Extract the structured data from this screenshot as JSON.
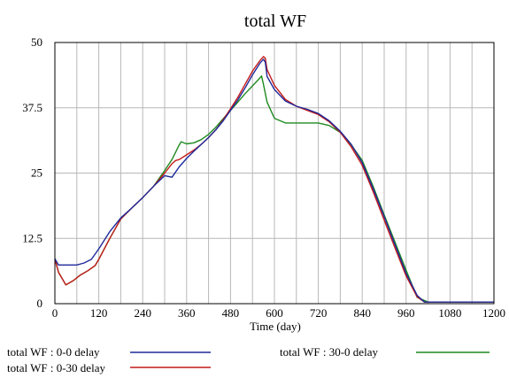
{
  "chart_data": {
    "type": "line",
    "title": "total WF",
    "xlabel": "Time (day)",
    "ylabel": "",
    "xlim": [
      0,
      1200
    ],
    "ylim": [
      0,
      50
    ],
    "xticks": [
      0,
      120,
      240,
      360,
      480,
      600,
      720,
      840,
      960,
      1080,
      1200
    ],
    "yticks": [
      0,
      12.5,
      25,
      37.5,
      50
    ],
    "xtick_labels": [
      "0",
      "120",
      "240",
      "360",
      "480",
      "600",
      "720",
      "840",
      "960",
      "1080",
      "1200"
    ],
    "ytick_labels": [
      "0",
      "12.5",
      "25",
      "37.5",
      "50"
    ],
    "grid": true,
    "legend_position": "bottom",
    "series": [
      {
        "name": "total WF : 0-0 delay",
        "color": "#1f2a9a",
        "x": [
          0,
          10,
          20,
          40,
          60,
          80,
          100,
          120,
          150,
          180,
          210,
          240,
          270,
          300,
          320,
          340,
          360,
          380,
          400,
          420,
          440,
          460,
          480,
          500,
          520,
          540,
          560,
          570,
          575,
          580,
          600,
          630,
          660,
          690,
          720,
          750,
          780,
          810,
          840,
          870,
          900,
          930,
          960,
          990,
          1010,
          1020,
          1200
        ],
        "y": [
          8.6,
          7.4,
          7.4,
          7.4,
          7.4,
          7.8,
          8.5,
          10.5,
          13.8,
          16.4,
          18.3,
          20.3,
          22.5,
          24.5,
          24.2,
          26.2,
          27.8,
          29.2,
          30.5,
          31.8,
          33.3,
          35.0,
          37.0,
          39.0,
          41.3,
          43.8,
          46.0,
          46.8,
          46.2,
          43.5,
          41.0,
          38.8,
          37.8,
          37.2,
          36.4,
          35.0,
          33.0,
          30.5,
          27.0,
          22.0,
          16.7,
          11.2,
          5.8,
          1.6,
          0.3,
          0.3,
          0.3
        ]
      },
      {
        "name": "total WF : 0-30 delay",
        "color": "#c41a1a",
        "x": [
          0,
          10,
          30,
          50,
          70,
          90,
          110,
          120,
          150,
          180,
          210,
          240,
          270,
          300,
          320,
          330,
          340,
          360,
          380,
          400,
          420,
          440,
          460,
          480,
          500,
          520,
          540,
          560,
          570,
          575,
          580,
          600,
          630,
          660,
          690,
          720,
          750,
          780,
          810,
          840,
          870,
          900,
          930,
          960,
          990,
          1010,
          1020,
          1200
        ],
        "y": [
          8.6,
          6.0,
          3.6,
          4.4,
          5.5,
          6.3,
          7.3,
          8.5,
          12.5,
          16.2,
          18.3,
          20.3,
          22.5,
          25.0,
          26.8,
          27.4,
          27.6,
          28.5,
          29.4,
          30.5,
          31.8,
          33.3,
          35.2,
          37.3,
          39.5,
          42.0,
          44.5,
          46.5,
          47.3,
          47.0,
          44.8,
          41.8,
          39.1,
          37.8,
          37.0,
          36.2,
          34.8,
          32.8,
          30.0,
          26.5,
          21.4,
          16.0,
          10.6,
          5.3,
          1.3,
          0.3,
          0.3,
          0.3
        ]
      },
      {
        "name": "total WF : 30-0 delay",
        "color": "#1f8a1f",
        "x": [
          0,
          10,
          30,
          50,
          70,
          90,
          110,
          120,
          150,
          180,
          210,
          240,
          270,
          300,
          320,
          340,
          345,
          360,
          380,
          400,
          420,
          440,
          460,
          480,
          500,
          520,
          540,
          555,
          565,
          570,
          580,
          600,
          630,
          660,
          690,
          720,
          750,
          780,
          810,
          840,
          870,
          900,
          930,
          960,
          990,
          1020,
          1030,
          1200
        ],
        "y": [
          8.6,
          6.0,
          3.6,
          4.4,
          5.5,
          6.3,
          7.3,
          8.5,
          12.5,
          16.2,
          18.3,
          20.3,
          22.5,
          25.5,
          27.6,
          30.4,
          31.0,
          30.6,
          30.8,
          31.4,
          32.4,
          33.8,
          35.4,
          37.0,
          38.6,
          40.2,
          41.7,
          42.8,
          43.6,
          42.0,
          38.6,
          35.5,
          34.6,
          34.6,
          34.6,
          34.6,
          34.1,
          32.8,
          30.4,
          27.4,
          22.4,
          17.0,
          11.7,
          6.4,
          1.2,
          0.3,
          0.3,
          0.3
        ]
      }
    ]
  }
}
